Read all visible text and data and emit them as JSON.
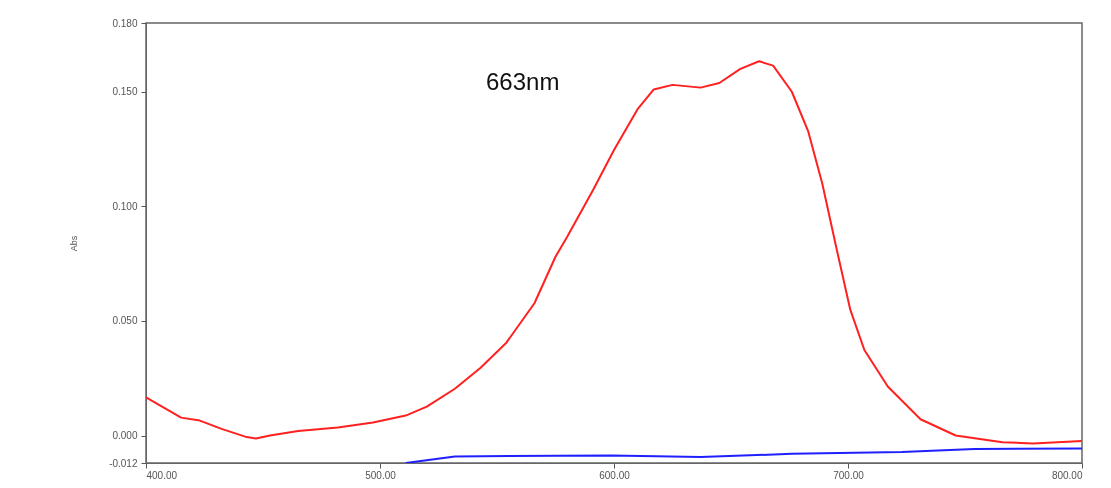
{
  "chart_data": {
    "type": "line",
    "ylabel": "Abs",
    "annotations": [
      "663nm"
    ],
    "xlim": [
      400,
      800
    ],
    "xticks": [
      {
        "value": 400,
        "label": "400.00"
      },
      {
        "value": 500,
        "label": "500.00"
      },
      {
        "value": 600,
        "label": "600.00"
      },
      {
        "value": 700,
        "label": "700.00"
      },
      {
        "value": 800,
        "label": "800.00"
      }
    ],
    "ylim": [
      -0.012,
      0.18
    ],
    "yticks": [
      {
        "value": -0.012,
        "label": "-0.012"
      },
      {
        "value": 0,
        "label": "0.000"
      },
      {
        "value": 0.05,
        "label": "0.050"
      },
      {
        "value": 0.1,
        "label": "0.100"
      },
      {
        "value": 0.15,
        "label": "0.150"
      },
      {
        "value": 0.18,
        "label": "0.180"
      }
    ],
    "grid": false,
    "legend": false,
    "series": [
      {
        "color": "#ff2020",
        "x": [
          400,
          415,
          423,
          432,
          443,
          447,
          453,
          465,
          482,
          497,
          511,
          520,
          532,
          543,
          554,
          566,
          575,
          580,
          591,
          600,
          610,
          617,
          625,
          637,
          645,
          654,
          662,
          668,
          676,
          683,
          689,
          695,
          701,
          707,
          717,
          731,
          746,
          766,
          779,
          800
        ],
        "values": [
          0.0166,
          0.0078,
          0.0065,
          0.003,
          -0.0007,
          -0.0013,
          0.0,
          0.002,
          0.0035,
          0.0057,
          0.0087,
          0.0126,
          0.0204,
          0.0296,
          0.0405,
          0.0577,
          0.078,
          0.0867,
          0.107,
          0.1246,
          0.1423,
          0.151,
          0.153,
          0.1518,
          0.1538,
          0.16,
          0.1633,
          0.1614,
          0.15,
          0.1327,
          0.11,
          0.082,
          0.0548,
          0.0373,
          0.0214,
          0.0071,
          0.0,
          -0.0029,
          -0.0035,
          -0.0024
        ]
      },
      {
        "color": "#2020ff",
        "x": [
          511,
          532,
          575,
          599,
          637,
          676,
          723,
          754,
          800
        ],
        "values": [
          -0.012,
          -0.0092,
          -0.0088,
          -0.0087,
          -0.0094,
          -0.008,
          -0.0072,
          -0.0059,
          -0.0057
        ]
      }
    ]
  }
}
